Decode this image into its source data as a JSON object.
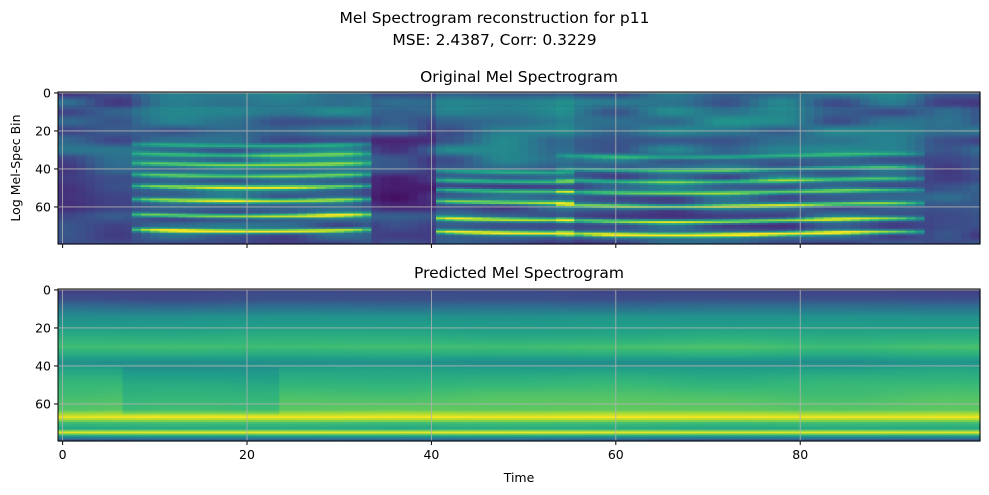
{
  "figure": {
    "suptitle_line1": "Mel Spectrogram reconstruction for p11",
    "suptitle_line2": "MSE: 2.4387, Corr: 0.3229"
  },
  "chart_data": [
    {
      "type": "heatmap",
      "title": "Original Mel Spectrogram",
      "xlabel": "",
      "ylabel": "Log Mel-Spec Bin",
      "colormap": "viridis",
      "x_range": [
        0,
        99
      ],
      "y_range": [
        0,
        79
      ],
      "y_inverted": true,
      "xticks": [
        0,
        20,
        40,
        60,
        80
      ],
      "xtick_labels_visible": false,
      "yticks": [
        0,
        20,
        40,
        60
      ],
      "grid": true,
      "segments": [
        {
          "x_start": 8,
          "x_end": 33,
          "harmonic_bins": [
            27,
            32,
            37,
            43,
            49,
            56,
            64,
            72
          ]
        },
        {
          "x_start": 41,
          "x_end": 55,
          "harmonic_bins": [
            41,
            46,
            51,
            57,
            66,
            73
          ]
        },
        {
          "x_start": 54,
          "x_end": 93,
          "harmonic_bins": [
            33,
            40,
            46,
            52,
            59,
            67,
            74
          ]
        }
      ]
    },
    {
      "type": "heatmap",
      "title": "Predicted Mel Spectrogram",
      "xlabel": "Time",
      "ylabel": "",
      "colormap": "viridis",
      "x_range": [
        0,
        99
      ],
      "y_range": [
        0,
        79
      ],
      "y_inverted": true,
      "xticks": [
        0,
        20,
        40,
        60,
        80
      ],
      "xtick_labels_visible": true,
      "yticks": [
        0,
        20,
        40,
        60
      ],
      "grid": true,
      "row_profile": [
        {
          "bin": 0,
          "value": 0.2
        },
        {
          "bin": 5,
          "value": 0.24
        },
        {
          "bin": 10,
          "value": 0.38
        },
        {
          "bin": 14,
          "value": 0.5
        },
        {
          "bin": 20,
          "value": 0.56
        },
        {
          "bin": 26,
          "value": 0.64
        },
        {
          "bin": 30,
          "value": 0.7
        },
        {
          "bin": 34,
          "value": 0.62
        },
        {
          "bin": 38,
          "value": 0.5
        },
        {
          "bin": 42,
          "value": 0.58
        },
        {
          "bin": 50,
          "value": 0.66
        },
        {
          "bin": 58,
          "value": 0.72
        },
        {
          "bin": 63,
          "value": 0.74
        },
        {
          "bin": 67,
          "value": 0.98
        },
        {
          "bin": 70,
          "value": 0.7
        },
        {
          "bin": 73,
          "value": 0.6
        },
        {
          "bin": 75,
          "value": 0.97
        },
        {
          "bin": 77,
          "value": 0.55
        },
        {
          "bin": 79,
          "value": 0.3
        }
      ]
    }
  ]
}
